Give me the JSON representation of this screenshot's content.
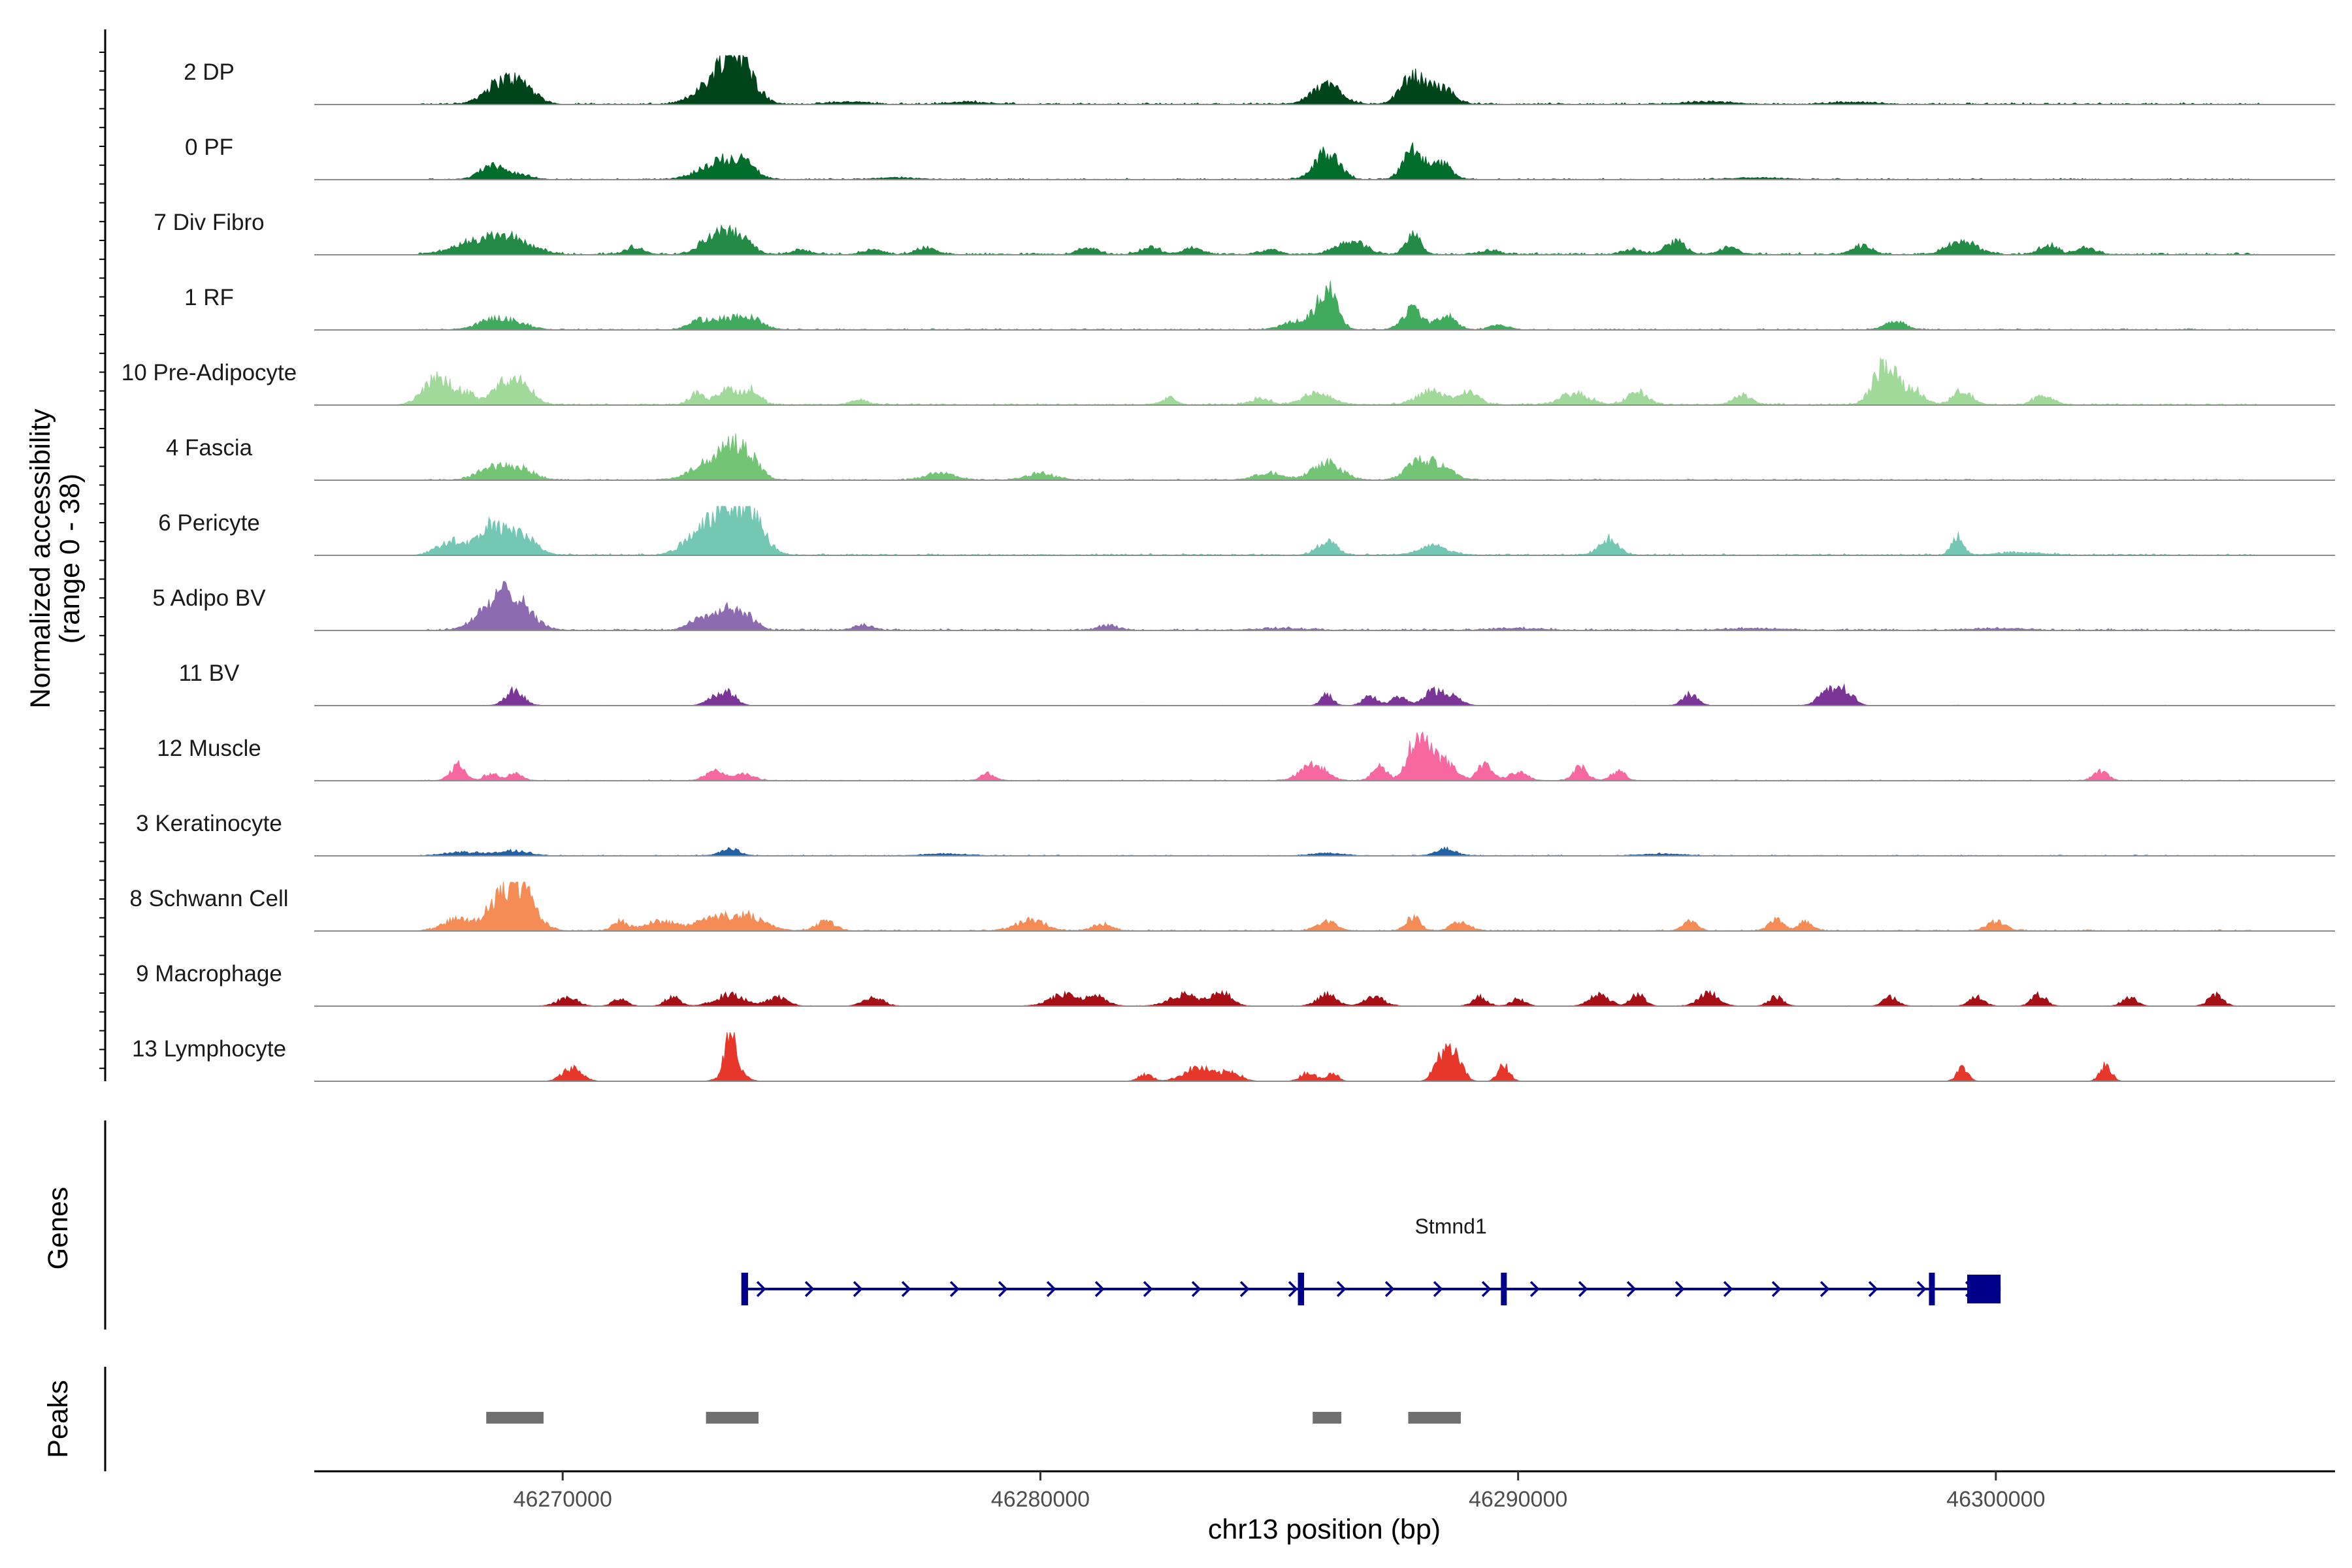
{
  "chart_data": {
    "type": "area",
    "title": "",
    "ylabel_line1": "Normalized accessibility",
    "ylabel_line2": "(range 0 - 38)",
    "yrange": [
      0,
      38
    ],
    "xlabel": "chr13 position (bp)",
    "xlim": [
      46264800,
      46307100
    ],
    "xticks": [
      46270000,
      46280000,
      46290000,
      46300000
    ],
    "xtick_labels": [
      "46270000",
      "46280000",
      "46290000",
      "46300000"
    ],
    "genes_label": "Genes",
    "peaks_label": "Peaks",
    "tracks": [
      {
        "name": "2 DP",
        "color": "#00441b",
        "noise": 0.04,
        "peaks": [
          [
            46268600,
            300,
            0.35
          ],
          [
            46269100,
            300,
            0.45
          ],
          [
            46273000,
            300,
            0.35
          ],
          [
            46273500,
            250,
            1.0
          ],
          [
            46273900,
            250,
            0.5
          ],
          [
            46276000,
            400,
            0.05
          ],
          [
            46278500,
            400,
            0.05
          ],
          [
            46286000,
            300,
            0.45
          ],
          [
            46287800,
            250,
            0.6
          ],
          [
            46288400,
            250,
            0.35
          ],
          [
            46294000,
            500,
            0.05
          ],
          [
            46297000,
            400,
            0.05
          ]
        ]
      },
      {
        "name": "0 PF",
        "color": "#006d2c",
        "noise": 0.03,
        "peaks": [
          [
            46268500,
            250,
            0.3
          ],
          [
            46269100,
            250,
            0.1
          ],
          [
            46273300,
            400,
            0.4
          ],
          [
            46273800,
            250,
            0.25
          ],
          [
            46277000,
            400,
            0.04
          ],
          [
            46286000,
            250,
            0.6
          ],
          [
            46287800,
            200,
            0.75
          ],
          [
            46288400,
            200,
            0.35
          ],
          [
            46295000,
            500,
            0.04
          ]
        ]
      },
      {
        "name": "7 Div Fibro",
        "color": "#238b45",
        "noise": 0.05,
        "peaks": [
          [
            46268300,
            500,
            0.3
          ],
          [
            46269000,
            400,
            0.25
          ],
          [
            46271500,
            200,
            0.15
          ],
          [
            46273200,
            300,
            0.4
          ],
          [
            46273700,
            250,
            0.35
          ],
          [
            46275000,
            200,
            0.1
          ],
          [
            46276500,
            200,
            0.1
          ],
          [
            46277600,
            200,
            0.15
          ],
          [
            46281000,
            200,
            0.15
          ],
          [
            46282300,
            200,
            0.15
          ],
          [
            46283200,
            200,
            0.15
          ],
          [
            46284800,
            200,
            0.1
          ],
          [
            46286500,
            300,
            0.3
          ],
          [
            46287800,
            150,
            0.5
          ],
          [
            46289400,
            200,
            0.1
          ],
          [
            46292400,
            200,
            0.1
          ],
          [
            46293300,
            200,
            0.3
          ],
          [
            46294400,
            200,
            0.15
          ],
          [
            46297200,
            200,
            0.2
          ],
          [
            46299300,
            300,
            0.3
          ],
          [
            46301100,
            200,
            0.2
          ],
          [
            46301900,
            200,
            0.15
          ]
        ]
      },
      {
        "name": "1 RF",
        "color": "#41ab5d",
        "noise": 0.03,
        "peaks": [
          [
            46268500,
            300,
            0.2
          ],
          [
            46269000,
            300,
            0.15
          ],
          [
            46272800,
            200,
            0.15
          ],
          [
            46273500,
            400,
            0.25
          ],
          [
            46274000,
            200,
            0.15
          ],
          [
            46285400,
            300,
            0.2
          ],
          [
            46286000,
            200,
            0.9
          ],
          [
            46287800,
            200,
            0.45
          ],
          [
            46288500,
            200,
            0.3
          ],
          [
            46289600,
            200,
            0.1
          ],
          [
            46297900,
            200,
            0.2
          ]
        ]
      },
      {
        "name": "10 Pre-Adipocyte",
        "color": "#a1d99b",
        "noise": 0.04,
        "peaks": [
          [
            46267400,
            300,
            0.6
          ],
          [
            46268000,
            200,
            0.2
          ],
          [
            46268700,
            250,
            0.3
          ],
          [
            46269100,
            250,
            0.55
          ],
          [
            46272800,
            150,
            0.25
          ],
          [
            46273500,
            250,
            0.35
          ],
          [
            46274000,
            150,
            0.3
          ],
          [
            46276200,
            200,
            0.1
          ],
          [
            46282700,
            150,
            0.15
          ],
          [
            46284600,
            200,
            0.15
          ],
          [
            46285800,
            300,
            0.25
          ],
          [
            46288200,
            300,
            0.3
          ],
          [
            46289000,
            200,
            0.25
          ],
          [
            46291200,
            300,
            0.25
          ],
          [
            46292500,
            200,
            0.3
          ],
          [
            46294700,
            200,
            0.2
          ],
          [
            46297700,
            250,
            0.9
          ],
          [
            46298300,
            200,
            0.3
          ],
          [
            46299300,
            200,
            0.3
          ],
          [
            46301000,
            200,
            0.2
          ]
        ]
      },
      {
        "name": "4 Fascia",
        "color": "#74c476",
        "noise": 0.03,
        "peaks": [
          [
            46268500,
            300,
            0.25
          ],
          [
            46269100,
            300,
            0.25
          ],
          [
            46273100,
            400,
            0.35
          ],
          [
            46273600,
            300,
            0.65
          ],
          [
            46274000,
            200,
            0.2
          ],
          [
            46277900,
            300,
            0.15
          ],
          [
            46280000,
            300,
            0.15
          ],
          [
            46284800,
            300,
            0.15
          ],
          [
            46286000,
            300,
            0.4
          ],
          [
            46287900,
            250,
            0.4
          ],
          [
            46288400,
            250,
            0.3
          ]
        ]
      },
      {
        "name": "6 Pericyte",
        "color": "#74c7b4",
        "noise": 0.04,
        "peaks": [
          [
            46267700,
            300,
            0.3
          ],
          [
            46268500,
            250,
            0.6
          ],
          [
            46269100,
            300,
            0.45
          ],
          [
            46272800,
            300,
            0.35
          ],
          [
            46273500,
            400,
            1.0
          ],
          [
            46274000,
            250,
            0.5
          ],
          [
            46286000,
            200,
            0.3
          ],
          [
            46288200,
            300,
            0.2
          ],
          [
            46291900,
            200,
            0.35
          ],
          [
            46299200,
            120,
            0.4
          ],
          [
            46300500,
            500,
            0.05
          ]
        ]
      },
      {
        "name": "5 Adipo BV",
        "color": "#8c6bb1",
        "noise": 0.04,
        "peaks": [
          [
            46268400,
            300,
            0.4
          ],
          [
            46268800,
            200,
            0.45
          ],
          [
            46269100,
            300,
            0.55
          ],
          [
            46272800,
            200,
            0.2
          ],
          [
            46273400,
            300,
            0.45
          ],
          [
            46273900,
            200,
            0.2
          ],
          [
            46276300,
            200,
            0.1
          ],
          [
            46281400,
            200,
            0.1
          ],
          [
            46285000,
            500,
            0.04
          ],
          [
            46290000,
            500,
            0.04
          ],
          [
            46295000,
            500,
            0.04
          ],
          [
            46300000,
            500,
            0.04
          ]
        ]
      },
      {
        "name": "11 BV",
        "color": "#7a3596",
        "noise": 0.01,
        "peaks": [
          [
            46269000,
            180,
            0.35
          ],
          [
            46273200,
            180,
            0.2
          ],
          [
            46273500,
            150,
            0.25
          ],
          [
            46286000,
            120,
            0.25
          ],
          [
            46286900,
            150,
            0.2
          ],
          [
            46287500,
            150,
            0.2
          ],
          [
            46288200,
            200,
            0.3
          ],
          [
            46288600,
            200,
            0.2
          ],
          [
            46293600,
            150,
            0.25
          ],
          [
            46296500,
            200,
            0.35
          ],
          [
            46296900,
            150,
            0.3
          ]
        ]
      },
      {
        "name": "12 Muscle",
        "color": "#f768a1",
        "noise": 0.02,
        "peaks": [
          [
            46267800,
            150,
            0.35
          ],
          [
            46268500,
            150,
            0.15
          ],
          [
            46269000,
            150,
            0.15
          ],
          [
            46273200,
            200,
            0.2
          ],
          [
            46273800,
            200,
            0.15
          ],
          [
            46278900,
            150,
            0.15
          ],
          [
            46285700,
            250,
            0.4
          ],
          [
            46287100,
            150,
            0.3
          ],
          [
            46287900,
            200,
            1.0
          ],
          [
            46288400,
            250,
            0.45
          ],
          [
            46289300,
            150,
            0.35
          ],
          [
            46290000,
            200,
            0.2
          ],
          [
            46291300,
            150,
            0.3
          ],
          [
            46292100,
            150,
            0.2
          ],
          [
            46302200,
            150,
            0.2
          ]
        ]
      },
      {
        "name": "3 Keratinocyte",
        "color": "#2361a3",
        "noise": 0.02,
        "peaks": [
          [
            46268000,
            400,
            0.08
          ],
          [
            46269000,
            300,
            0.1
          ],
          [
            46273500,
            200,
            0.15
          ],
          [
            46278000,
            400,
            0.04
          ],
          [
            46286000,
            300,
            0.06
          ],
          [
            46288500,
            200,
            0.15
          ],
          [
            46293000,
            400,
            0.04
          ]
        ]
      },
      {
        "name": "8 Schwann Cell",
        "color": "#f58b55",
        "noise": 0.03,
        "peaks": [
          [
            46267800,
            300,
            0.25
          ],
          [
            46268600,
            250,
            0.45
          ],
          [
            46269100,
            300,
            0.95
          ],
          [
            46271200,
            150,
            0.2
          ],
          [
            46272000,
            300,
            0.2
          ],
          [
            46273300,
            500,
            0.3
          ],
          [
            46274000,
            300,
            0.2
          ],
          [
            46275500,
            200,
            0.2
          ],
          [
            46279800,
            300,
            0.25
          ],
          [
            46281300,
            200,
            0.15
          ],
          [
            46286000,
            200,
            0.2
          ],
          [
            46287800,
            150,
            0.3
          ],
          [
            46288800,
            200,
            0.2
          ],
          [
            46293600,
            150,
            0.2
          ],
          [
            46295400,
            150,
            0.25
          ],
          [
            46296000,
            150,
            0.2
          ],
          [
            46300000,
            200,
            0.2
          ]
        ]
      },
      {
        "name": "9 Macrophage",
        "color": "#a50f15",
        "noise": 0.01,
        "peaks": [
          [
            46270100,
            200,
            0.2
          ],
          [
            46271200,
            150,
            0.15
          ],
          [
            46272300,
            150,
            0.2
          ],
          [
            46273500,
            300,
            0.25
          ],
          [
            46274500,
            200,
            0.2
          ],
          [
            46276500,
            200,
            0.2
          ],
          [
            46280500,
            300,
            0.25
          ],
          [
            46281200,
            200,
            0.2
          ],
          [
            46283000,
            300,
            0.25
          ],
          [
            46283800,
            200,
            0.3
          ],
          [
            46286000,
            200,
            0.25
          ],
          [
            46287000,
            200,
            0.2
          ],
          [
            46289200,
            150,
            0.2
          ],
          [
            46290000,
            150,
            0.15
          ],
          [
            46291700,
            200,
            0.25
          ],
          [
            46292500,
            150,
            0.25
          ],
          [
            46294000,
            200,
            0.3
          ],
          [
            46295400,
            150,
            0.2
          ],
          [
            46297800,
            150,
            0.2
          ],
          [
            46299600,
            150,
            0.2
          ],
          [
            46300900,
            150,
            0.25
          ],
          [
            46302800,
            150,
            0.2
          ],
          [
            46304600,
            150,
            0.25
          ]
        ]
      },
      {
        "name": "13 Lymphocyte",
        "color": "#e6372a",
        "noise": 0.0,
        "peaks": [
          [
            46270200,
            200,
            0.3
          ],
          [
            46273500,
            90,
            1.0
          ],
          [
            46273560,
            200,
            0.35
          ],
          [
            46282200,
            150,
            0.15
          ],
          [
            46283300,
            300,
            0.3
          ],
          [
            46284000,
            200,
            0.2
          ],
          [
            46285600,
            150,
            0.2
          ],
          [
            46286100,
            120,
            0.2
          ],
          [
            46288400,
            150,
            0.6
          ],
          [
            46288700,
            150,
            0.5
          ],
          [
            46289700,
            120,
            0.35
          ],
          [
            46299300,
            120,
            0.3
          ],
          [
            46302300,
            120,
            0.35
          ]
        ]
      }
    ],
    "gene": {
      "name": "Stmnd1",
      "color": "#00008b",
      "start": 46273800,
      "end": 46300100,
      "strand": "+",
      "exons": [
        [
          46273740,
          46273880
        ],
        [
          46285390,
          46285520
        ],
        [
          46289640,
          46289740
        ],
        [
          46298600,
          46298680
        ],
        [
          46299400,
          46300100
        ]
      ]
    },
    "peak_regions": [
      [
        46268400,
        46269600
      ],
      [
        46273000,
        46274100
      ],
      [
        46285700,
        46286300
      ],
      [
        46287700,
        46288800
      ]
    ]
  }
}
